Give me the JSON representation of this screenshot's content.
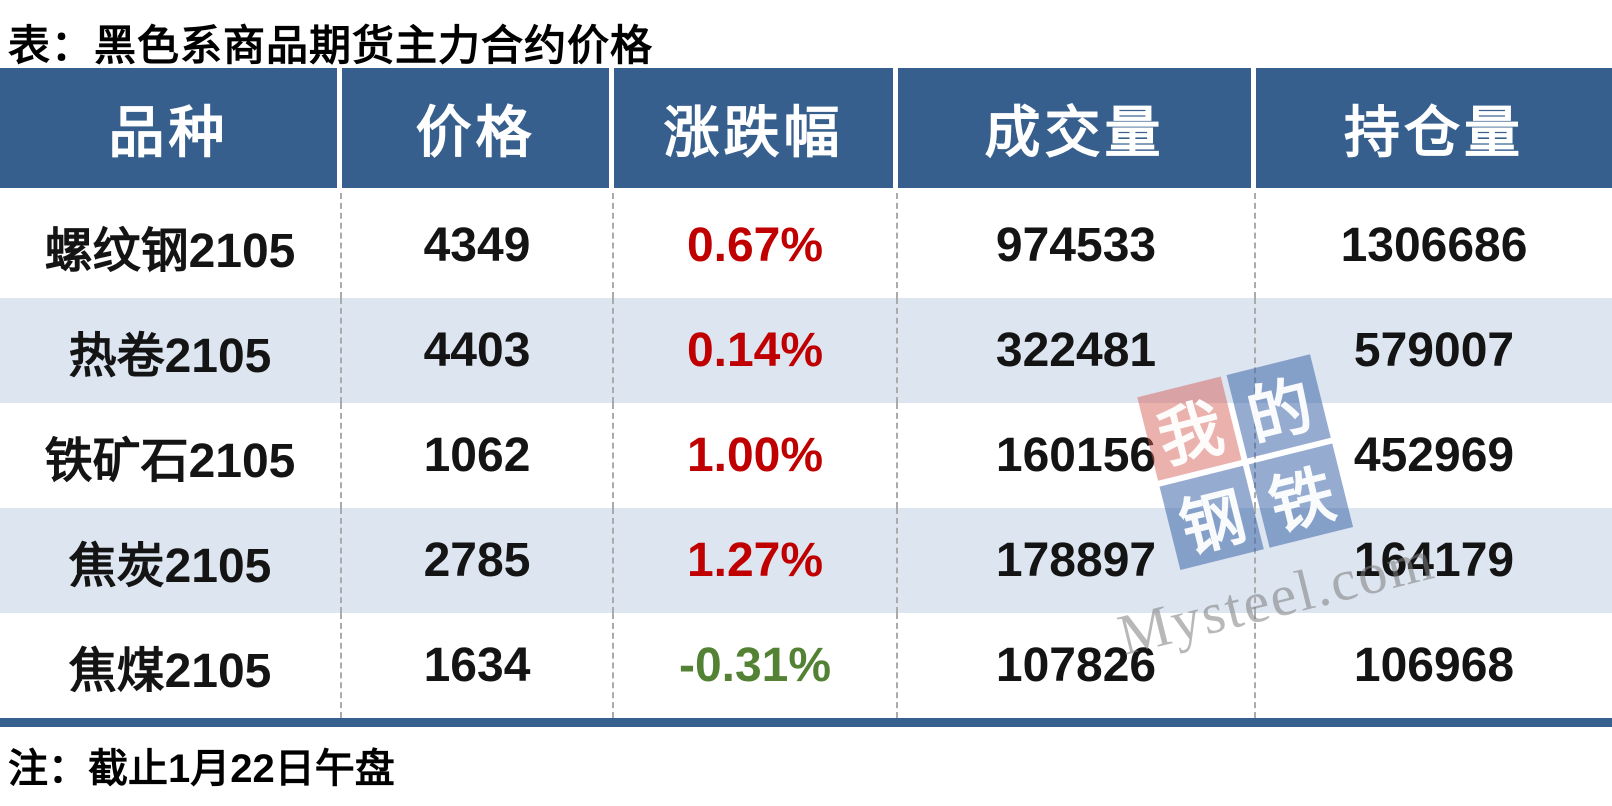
{
  "title": "表：黑色系商品期货主力合约价格",
  "note": "注：截止1月22日午盘",
  "table": {
    "headers": [
      "品种",
      "价格",
      "涨跌幅",
      "成交量",
      "持仓量"
    ],
    "rows": [
      {
        "variety": "螺纹钢2105",
        "price": "4349",
        "change": "0.67%",
        "volume": "974533",
        "open_interest": "1306686",
        "change_color": "#C00000"
      },
      {
        "variety": "热卷2105",
        "price": "4403",
        "change": "0.14%",
        "volume": "322481",
        "open_interest": "579007",
        "change_color": "#C00000"
      },
      {
        "variety": "铁矿石2105",
        "price": "1062",
        "change": "1.00%",
        "volume": "160156",
        "open_interest": "452969",
        "change_color": "#C00000"
      },
      {
        "variety": "焦炭2105",
        "price": "2785",
        "change": "1.27%",
        "volume": "178897",
        "open_interest": "164179",
        "change_color": "#C00000"
      },
      {
        "variety": "焦煤2105",
        "price": "1634",
        "change": "-0.31%",
        "volume": "107826",
        "open_interest": "106968",
        "change_color": "#548235"
      }
    ]
  },
  "watermark": {
    "squares": [
      "我",
      "的",
      "钢",
      "铁"
    ],
    "text": "Mysteel.com"
  },
  "colors": {
    "header_bg": "#365F8D",
    "alt_row_bg": "#DCE5F0",
    "bottom_bar": "#36618F",
    "up_red": "#C00000",
    "down_green": "#548235",
    "watermark_red": "#D55C54",
    "watermark_blue": "#3460A5"
  }
}
